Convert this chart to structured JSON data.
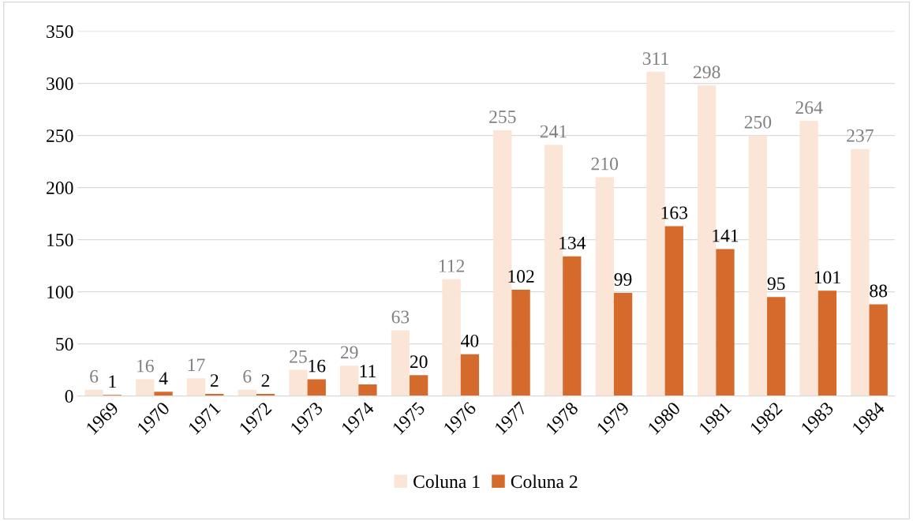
{
  "chart_data": {
    "type": "bar",
    "categories": [
      "1969",
      "1970",
      "1971",
      "1972",
      "1973",
      "1974",
      "1975",
      "1976",
      "1977",
      "1978",
      "1979",
      "1980",
      "1981",
      "1982",
      "1983",
      "1984"
    ],
    "series": [
      {
        "name": "Coluna 1",
        "color": "#fbe5d6",
        "values": [
          6,
          16,
          17,
          6,
          25,
          29,
          63,
          112,
          255,
          241,
          210,
          311,
          298,
          250,
          264,
          237
        ]
      },
      {
        "name": "Coluna 2",
        "color": "#d46b2c",
        "values": [
          1,
          4,
          2,
          2,
          16,
          11,
          20,
          40,
          102,
          134,
          99,
          163,
          141,
          95,
          101,
          88
        ]
      }
    ],
    "ylim": [
      0,
      350
    ],
    "yticks": [
      0,
      50,
      100,
      150,
      200,
      250,
      300,
      350
    ],
    "grid": "y",
    "legend": "bottom",
    "data_labels": true
  }
}
